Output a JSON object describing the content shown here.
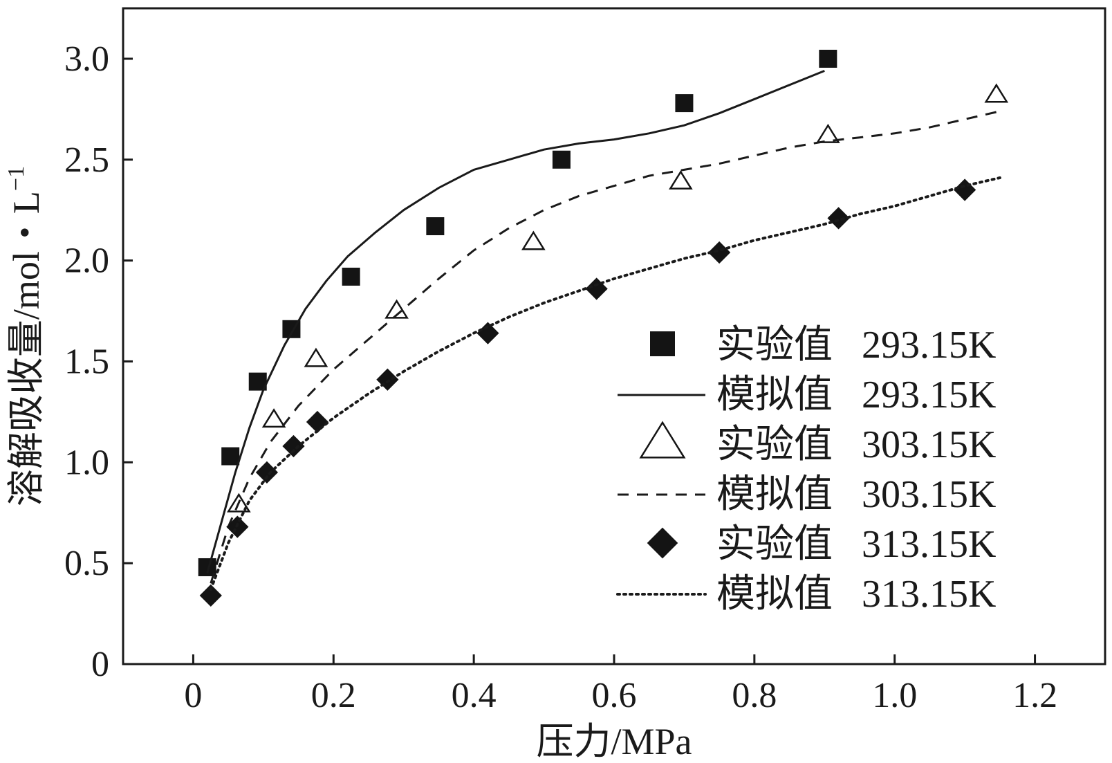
{
  "chart_data": {
    "type": "scatter",
    "title": "",
    "xlabel": "压力/MPa",
    "ylabel_main": "溶解吸收量/mol・L",
    "ylabel_sup": "−1",
    "xlim": [
      -0.1,
      1.3
    ],
    "ylim": [
      0,
      3.25
    ],
    "x_ticks": [
      0,
      0.2,
      0.4,
      0.6,
      0.8,
      1.0,
      1.2
    ],
    "x_tick_labels": [
      "0",
      "0.2",
      "0.4",
      "0.6",
      "0.8",
      "1.0",
      "1.2"
    ],
    "y_ticks": [
      0,
      0.5,
      1.0,
      1.5,
      2.0,
      2.5,
      3.0
    ],
    "y_tick_labels": [
      "0",
      "0.5",
      "1.0",
      "1.5",
      "2.0",
      "2.5",
      "3.0"
    ],
    "grid": false,
    "legend_position": "bottom-right",
    "series": [
      {
        "name": "实验值",
        "temp": "293.15K",
        "kind": "points",
        "marker": "square",
        "points": [
          [
            0.02,
            0.48
          ],
          [
            0.053,
            1.03
          ],
          [
            0.092,
            1.4
          ],
          [
            0.14,
            1.66
          ],
          [
            0.225,
            1.92
          ],
          [
            0.345,
            2.17
          ],
          [
            0.525,
            2.5
          ],
          [
            0.7,
            2.78
          ],
          [
            0.905,
            3.0
          ]
        ]
      },
      {
        "name": "模拟值",
        "temp": "293.15K",
        "kind": "line",
        "dash": "solid",
        "points": [
          [
            0.02,
            0.45
          ],
          [
            0.04,
            0.7
          ],
          [
            0.06,
            0.95
          ],
          [
            0.08,
            1.17
          ],
          [
            0.1,
            1.36
          ],
          [
            0.13,
            1.58
          ],
          [
            0.16,
            1.76
          ],
          [
            0.19,
            1.9
          ],
          [
            0.22,
            2.02
          ],
          [
            0.26,
            2.14
          ],
          [
            0.3,
            2.25
          ],
          [
            0.35,
            2.36
          ],
          [
            0.4,
            2.45
          ],
          [
            0.45,
            2.5
          ],
          [
            0.5,
            2.55
          ],
          [
            0.55,
            2.58
          ],
          [
            0.6,
            2.6
          ],
          [
            0.65,
            2.63
          ],
          [
            0.7,
            2.67
          ],
          [
            0.75,
            2.73
          ],
          [
            0.8,
            2.8
          ],
          [
            0.85,
            2.87
          ],
          [
            0.9,
            2.94
          ]
        ]
      },
      {
        "name": "实验值",
        "temp": "303.15K",
        "kind": "points",
        "marker": "triangle",
        "points": [
          [
            0.065,
            0.79
          ],
          [
            0.115,
            1.21
          ],
          [
            0.175,
            1.51
          ],
          [
            0.29,
            1.75
          ],
          [
            0.485,
            2.09
          ],
          [
            0.695,
            2.39
          ],
          [
            0.905,
            2.62
          ],
          [
            1.145,
            2.82
          ]
        ]
      },
      {
        "name": "模拟值",
        "temp": "303.15K",
        "kind": "line",
        "dash": "dashed",
        "points": [
          [
            0.025,
            0.4
          ],
          [
            0.05,
            0.68
          ],
          [
            0.08,
            0.92
          ],
          [
            0.11,
            1.1
          ],
          [
            0.15,
            1.28
          ],
          [
            0.2,
            1.46
          ],
          [
            0.25,
            1.61
          ],
          [
            0.3,
            1.76
          ],
          [
            0.35,
            1.91
          ],
          [
            0.4,
            2.05
          ],
          [
            0.45,
            2.16
          ],
          [
            0.5,
            2.25
          ],
          [
            0.55,
            2.32
          ],
          [
            0.6,
            2.37
          ],
          [
            0.65,
            2.42
          ],
          [
            0.7,
            2.45
          ],
          [
            0.75,
            2.48
          ],
          [
            0.8,
            2.52
          ],
          [
            0.85,
            2.56
          ],
          [
            0.9,
            2.59
          ],
          [
            0.95,
            2.61
          ],
          [
            1.0,
            2.63
          ],
          [
            1.05,
            2.66
          ],
          [
            1.1,
            2.7
          ],
          [
            1.15,
            2.74
          ]
        ]
      },
      {
        "name": "实验值",
        "temp": "313.15K",
        "kind": "points",
        "marker": "diamond",
        "points": [
          [
            0.025,
            0.34
          ],
          [
            0.063,
            0.68
          ],
          [
            0.105,
            0.95
          ],
          [
            0.143,
            1.08
          ],
          [
            0.177,
            1.2
          ],
          [
            0.277,
            1.41
          ],
          [
            0.42,
            1.64
          ],
          [
            0.575,
            1.86
          ],
          [
            0.75,
            2.04
          ],
          [
            0.92,
            2.21
          ],
          [
            1.1,
            2.35
          ]
        ]
      },
      {
        "name": "模拟值",
        "temp": "313.15K",
        "kind": "line",
        "dash": "dotted",
        "points": [
          [
            0.025,
            0.37
          ],
          [
            0.05,
            0.6
          ],
          [
            0.08,
            0.81
          ],
          [
            0.11,
            0.95
          ],
          [
            0.15,
            1.08
          ],
          [
            0.2,
            1.22
          ],
          [
            0.25,
            1.34
          ],
          [
            0.3,
            1.45
          ],
          [
            0.35,
            1.55
          ],
          [
            0.4,
            1.64
          ],
          [
            0.45,
            1.72
          ],
          [
            0.5,
            1.79
          ],
          [
            0.55,
            1.85
          ],
          [
            0.6,
            1.91
          ],
          [
            0.65,
            1.96
          ],
          [
            0.7,
            2.01
          ],
          [
            0.75,
            2.05
          ],
          [
            0.8,
            2.1
          ],
          [
            0.85,
            2.14
          ],
          [
            0.9,
            2.18
          ],
          [
            0.95,
            2.23
          ],
          [
            1.0,
            2.27
          ],
          [
            1.05,
            2.32
          ],
          [
            1.1,
            2.37
          ],
          [
            1.15,
            2.41
          ]
        ]
      }
    ]
  }
}
